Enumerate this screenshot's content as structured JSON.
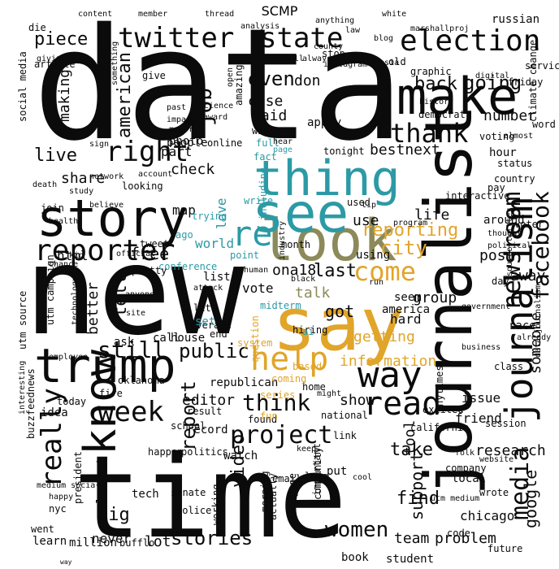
{
  "title": "SCMP",
  "colors": {
    "black": "#0b0b0b",
    "teal": "#2c9aa5",
    "gold": "#e0a52a",
    "olive": "#8c8a5a",
    "gray": "#2a2a2a"
  },
  "words": [
    {
      "text": "data",
      "color": "black"
    },
    {
      "text": "new",
      "color": "black"
    },
    {
      "text": "time",
      "color": "black"
    },
    {
      "text": "say",
      "color": "gold"
    },
    {
      "text": "journalist",
      "color": "black"
    },
    {
      "text": "look",
      "color": "olive"
    },
    {
      "text": "see",
      "color": "teal"
    },
    {
      "text": "thing",
      "color": "teal"
    },
    {
      "text": "story",
      "color": "black"
    },
    {
      "text": "make",
      "color": "black"
    },
    {
      "text": "trump",
      "color": "black"
    },
    {
      "text": "journalism",
      "color": "black"
    },
    {
      "text": "know",
      "color": "black"
    },
    {
      "text": "help",
      "color": "gold"
    },
    {
      "text": "election",
      "color": "black"
    },
    {
      "text": "twitter",
      "color": "black"
    },
    {
      "text": "state",
      "color": "black"
    },
    {
      "text": "reporter",
      "color": "black"
    },
    {
      "text": "right",
      "color": "black"
    },
    {
      "text": "way",
      "color": "black"
    },
    {
      "text": "project",
      "color": "black"
    },
    {
      "text": "read",
      "color": "black"
    },
    {
      "text": "week",
      "color": "black"
    },
    {
      "text": "newsroom",
      "color": "black"
    },
    {
      "text": "facebook",
      "color": "black"
    },
    {
      "text": "thank",
      "color": "black"
    },
    {
      "text": "really",
      "color": "black"
    },
    {
      "text": "come",
      "color": "gold"
    },
    {
      "text": "stories",
      "color": "black"
    },
    {
      "text": "women",
      "color": "black"
    },
    {
      "text": "think",
      "color": "black"
    },
    {
      "text": "still",
      "color": "black"
    },
    {
      "text": "public",
      "color": "black"
    },
    {
      "text": "live",
      "color": "black"
    },
    {
      "text": "even",
      "color": "black"
    },
    {
      "text": "re",
      "color": "teal"
    },
    {
      "text": "city",
      "color": "gold"
    },
    {
      "text": "reporting",
      "color": "gold"
    },
    {
      "text": "media",
      "color": "black"
    },
    {
      "text": "piece",
      "color": "black"
    },
    {
      "text": "report",
      "color": "black"
    },
    {
      "text": "job",
      "color": "black"
    },
    {
      "text": "american",
      "color": "black"
    },
    {
      "text": "going",
      "color": "black"
    },
    {
      "text": "back",
      "color": "black"
    },
    {
      "text": "google",
      "color": "black"
    },
    {
      "text": "someone",
      "color": "black"
    },
    {
      "text": "support",
      "color": "black"
    },
    {
      "text": "video",
      "color": "black"
    },
    {
      "text": "find",
      "color": "black"
    },
    {
      "text": "take",
      "color": "black"
    },
    {
      "text": "show",
      "color": "black"
    },
    {
      "text": "information",
      "color": "gold"
    },
    {
      "text": "getting",
      "color": "gold"
    },
    {
      "text": "group",
      "color": "black"
    },
    {
      "text": "talk",
      "color": "olive"
    },
    {
      "text": "last",
      "color": "black"
    },
    {
      "text": "ona18",
      "color": "black"
    },
    {
      "text": "vote",
      "color": "black"
    },
    {
      "text": "got",
      "color": "black"
    },
    {
      "text": "tool",
      "color": "black"
    },
    {
      "text": "part",
      "color": "black"
    },
    {
      "text": "check",
      "color": "black"
    },
    {
      "text": "share",
      "color": "black"
    },
    {
      "text": "map",
      "color": "black"
    },
    {
      "text": "free",
      "color": "black"
    },
    {
      "text": "html",
      "color": "black"
    },
    {
      "text": "better",
      "color": "black"
    },
    {
      "text": "tell",
      "color": "black"
    },
    {
      "text": "big",
      "color": "black"
    },
    {
      "text": "latest",
      "color": "black"
    },
    {
      "text": "never",
      "color": "black"
    },
    {
      "text": "learn",
      "color": "black"
    },
    {
      "text": "million",
      "color": "black"
    },
    {
      "text": "lot",
      "color": "black"
    },
    {
      "text": "team",
      "color": "black"
    },
    {
      "text": "problem",
      "color": "black"
    },
    {
      "text": "book",
      "color": "black"
    },
    {
      "text": "student",
      "color": "black"
    },
    {
      "text": "research",
      "color": "black"
    },
    {
      "text": "friend",
      "color": "black"
    },
    {
      "text": "issue",
      "color": "black"
    },
    {
      "text": "way",
      "color": "black"
    },
    {
      "text": "bestnext",
      "color": "black"
    },
    {
      "text": "said",
      "color": "black"
    },
    {
      "text": "case",
      "color": "black"
    },
    {
      "text": "don",
      "color": "black"
    },
    {
      "text": "use",
      "color": "black"
    },
    {
      "text": "life",
      "color": "black"
    },
    {
      "text": "using",
      "color": "black"
    },
    {
      "text": "post",
      "color": "black"
    },
    {
      "text": "world",
      "color": "teal"
    },
    {
      "text": "love",
      "color": "teal"
    },
    {
      "text": "editor",
      "color": "black"
    },
    {
      "text": "number",
      "color": "black"
    },
    {
      "text": "away",
      "color": "black"
    },
    {
      "text": "making",
      "color": "black"
    },
    {
      "text": "people",
      "color": "black"
    },
    {
      "text": "photo",
      "color": "black"
    },
    {
      "text": "online",
      "color": "black"
    },
    {
      "text": "chicago",
      "color": "black"
    },
    {
      "text": "local",
      "color": "black"
    },
    {
      "text": "tech",
      "color": "black"
    },
    {
      "text": "ask",
      "color": "black"
    },
    {
      "text": "house",
      "color": "black"
    },
    {
      "text": "call",
      "color": "black"
    },
    {
      "text": "republican",
      "color": "black"
    },
    {
      "text": "school",
      "color": "black"
    },
    {
      "text": "watch",
      "color": "black"
    },
    {
      "text": "email",
      "color": "black"
    },
    {
      "text": "long",
      "color": "black"
    },
    {
      "text": "record",
      "color": "black"
    },
    {
      "text": "result",
      "color": "black"
    },
    {
      "text": "politics",
      "color": "black"
    },
    {
      "text": "today",
      "color": "black"
    },
    {
      "text": "idea",
      "color": "black"
    },
    {
      "text": "nyc",
      "color": "black"
    },
    {
      "text": "president",
      "color": "black"
    },
    {
      "text": "morning",
      "color": "black"
    },
    {
      "text": "national",
      "color": "black"
    },
    {
      "text": "future",
      "color": "black"
    },
    {
      "text": "code",
      "color": "black"
    },
    {
      "text": "amazing",
      "color": "black"
    },
    {
      "text": "hour",
      "color": "black"
    },
    {
      "text": "class",
      "color": "black"
    },
    {
      "text": "day",
      "color": "black"
    },
    {
      "text": "around",
      "color": "black"
    },
    {
      "text": "pay",
      "color": "black"
    },
    {
      "text": "status",
      "color": "black"
    },
    {
      "text": "content",
      "color": "black"
    },
    {
      "text": "member",
      "color": "black"
    },
    {
      "text": "analysis",
      "color": "black"
    },
    {
      "text": "white",
      "color": "black"
    },
    {
      "text": "law",
      "color": "black"
    },
    {
      "text": "die",
      "color": "black"
    },
    {
      "text": "article",
      "color": "black"
    },
    {
      "text": "old",
      "color": "black"
    },
    {
      "text": "stop",
      "color": "black"
    },
    {
      "text": "county",
      "color": "black"
    },
    {
      "text": "thread",
      "color": "black"
    },
    {
      "text": "russian",
      "color": "black"
    },
    {
      "text": "death",
      "color": "black"
    },
    {
      "text": "join",
      "color": "black"
    },
    {
      "text": "list",
      "color": "black"
    },
    {
      "text": "conference",
      "color": "teal"
    },
    {
      "text": "month",
      "color": "black"
    },
    {
      "text": "midterm",
      "color": "teal"
    },
    {
      "text": "interactive",
      "color": "black"
    },
    {
      "text": "program",
      "color": "black"
    },
    {
      "text": "tweet",
      "color": "black"
    },
    {
      "text": "official",
      "color": "black"
    },
    {
      "text": "seem",
      "color": "black"
    },
    {
      "text": "america",
      "color": "black"
    },
    {
      "text": "hard",
      "color": "black"
    },
    {
      "text": "fire",
      "color": "black"
    },
    {
      "text": "buzzfeednews",
      "color": "black"
    },
    {
      "text": "social media",
      "color": "black"
    },
    {
      "text": "utm source",
      "color": "black"
    },
    {
      "text": "utm campaign",
      "color": "black"
    },
    {
      "text": "nytimes",
      "color": "black"
    },
    {
      "text": "california",
      "color": "black"
    },
    {
      "text": "excited",
      "color": "black"
    },
    {
      "text": "session",
      "color": "black"
    },
    {
      "text": "race",
      "color": "black"
    },
    {
      "text": "already",
      "color": "black"
    },
    {
      "text": "company",
      "color": "black"
    },
    {
      "text": "win",
      "color": "black"
    },
    {
      "text": "apply",
      "color": "black"
    },
    {
      "text": "tonight",
      "color": "black"
    },
    {
      "text": "hiring",
      "color": "black"
    },
    {
      "text": "coverage",
      "color": "black"
    },
    {
      "text": "oklahoma",
      "color": "black"
    },
    {
      "text": "senate",
      "color": "black"
    },
    {
      "text": "police",
      "color": "black"
    },
    {
      "text": "happen",
      "color": "black"
    },
    {
      "text": "actually",
      "color": "black"
    },
    {
      "text": "everyone",
      "color": "black"
    },
    {
      "text": "important",
      "color": "black"
    },
    {
      "text": "put",
      "color": "black"
    },
    {
      "text": "went",
      "color": "black"
    },
    {
      "text": "bufflo",
      "color": "black"
    },
    {
      "text": "source twitter",
      "color": "black"
    },
    {
      "text": "blog",
      "color": "black"
    },
    {
      "text": "instagram",
      "color": "black"
    },
    {
      "text": "marshallproj",
      "color": "black"
    },
    {
      "text": "graphic",
      "color": "black"
    },
    {
      "text": "science",
      "color": "black"
    },
    {
      "text": "impact",
      "color": "black"
    },
    {
      "text": "past",
      "color": "black"
    },
    {
      "text": "give",
      "color": "black"
    },
    {
      "text": "sign",
      "color": "black"
    },
    {
      "text": "network",
      "color": "black"
    },
    {
      "text": "account",
      "color": "black"
    },
    {
      "text": "looking",
      "color": "black"
    },
    {
      "text": "anyone",
      "color": "black"
    },
    {
      "text": "community",
      "color": "black"
    },
    {
      "text": "working",
      "color": "black"
    },
    {
      "text": "found",
      "color": "black"
    },
    {
      "text": "link",
      "color": "black"
    },
    {
      "text": "keep",
      "color": "black"
    },
    {
      "text": "might",
      "color": "black"
    },
    {
      "text": "home",
      "color": "black"
    },
    {
      "text": "coming",
      "color": "gold"
    },
    {
      "text": "let",
      "color": "black"
    },
    {
      "text": "end",
      "color": "black"
    },
    {
      "text": "site",
      "color": "black"
    },
    {
      "text": "set",
      "color": "teal"
    },
    {
      "text": "full",
      "color": "teal"
    },
    {
      "text": "fact",
      "color": "teal"
    },
    {
      "text": "write",
      "color": "teal"
    },
    {
      "text": "including",
      "color": "teal"
    },
    {
      "text": "point",
      "color": "teal"
    },
    {
      "text": "ago",
      "color": "teal"
    },
    {
      "text": "trying",
      "color": "teal"
    },
    {
      "text": "question",
      "color": "gold"
    },
    {
      "text": "series",
      "color": "gold"
    },
    {
      "text": "based",
      "color": "gold"
    },
    {
      "text": "ai",
      "color": "teal"
    },
    {
      "text": "system",
      "color": "gold"
    },
    {
      "text": "industry",
      "color": "black"
    },
    {
      "text": "voting",
      "color": "black"
    },
    {
      "text": "country",
      "color": "black"
    },
    {
      "text": "hear",
      "color": "black"
    },
    {
      "text": "open",
      "color": "black"
    },
    {
      "text": "always",
      "color": "black"
    },
    {
      "text": "something",
      "color": "black"
    },
    {
      "text": "award",
      "color": "black"
    },
    {
      "text": "democrat",
      "color": "black"
    },
    {
      "text": "climate change",
      "color": "black"
    },
    {
      "text": "history",
      "color": "black"
    },
    {
      "text": "friday",
      "color": "black"
    },
    {
      "text": "service",
      "color": "black"
    },
    {
      "text": "government",
      "color": "black"
    },
    {
      "text": "voter",
      "color": "black"
    },
    {
      "text": "thought",
      "color": "black"
    },
    {
      "text": "political",
      "color": "black"
    },
    {
      "text": "business",
      "color": "black"
    },
    {
      "text": "wrote",
      "color": "black"
    },
    {
      "text": "website",
      "color": "black"
    },
    {
      "text": "almost",
      "color": "black"
    },
    {
      "text": "word",
      "color": "black"
    },
    {
      "text": "fun",
      "color": "gold"
    },
    {
      "text": "page",
      "color": "teal"
    },
    {
      "text": "black",
      "color": "black"
    },
    {
      "text": "run",
      "color": "black"
    },
    {
      "text": "used",
      "color": "black"
    },
    {
      "text": "tip",
      "color": "black"
    },
    {
      "text": "human",
      "color": "black"
    },
    {
      "text": "attack",
      "color": "black"
    },
    {
      "text": "pretty",
      "color": "black"
    },
    {
      "text": "chance",
      "color": "black"
    },
    {
      "text": "kid",
      "color": "black"
    },
    {
      "text": "health",
      "color": "black"
    },
    {
      "text": "believe",
      "color": "black"
    },
    {
      "text": "study",
      "color": "black"
    },
    {
      "text": "technology",
      "color": "black"
    },
    {
      "text": "employee",
      "color": "black"
    },
    {
      "text": "interesting",
      "color": "black"
    },
    {
      "text": "happy",
      "color": "black"
    },
    {
      "text": "giving",
      "color": "black"
    },
    {
      "text": "russia",
      "color": "black"
    },
    {
      "text": "anything",
      "color": "black"
    },
    {
      "text": "poll",
      "color": "black"
    },
    {
      "text": "cool",
      "color": "black"
    },
    {
      "text": "folk",
      "color": "black"
    },
    {
      "text": "major",
      "color": "black"
    },
    {
      "text": "digital",
      "color": "black"
    },
    {
      "text": "data journalism",
      "color": "black"
    },
    {
      "text": "medium social",
      "color": "black"
    },
    {
      "text": "utm medium",
      "color": "black"
    }
  ]
}
